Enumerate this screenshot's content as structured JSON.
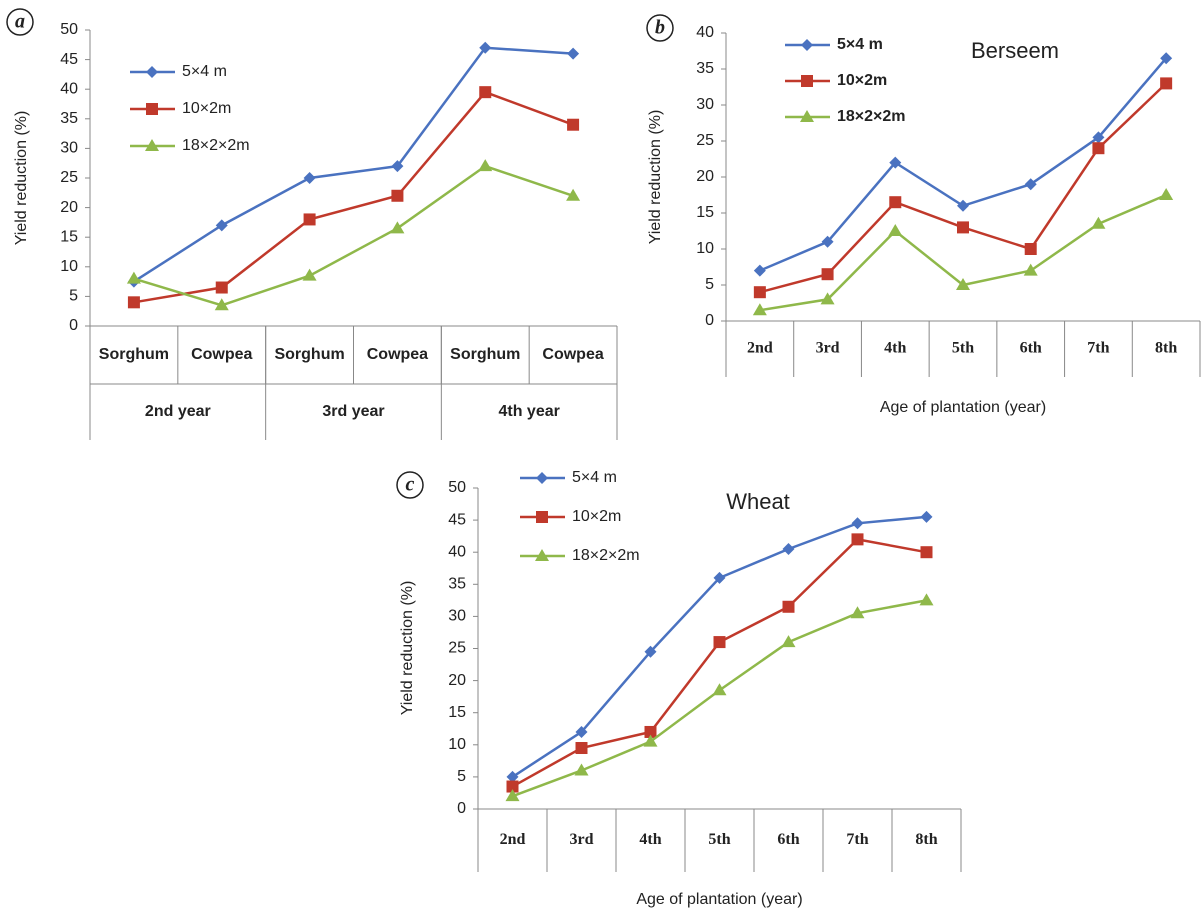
{
  "chart_data": [
    {
      "type": "line",
      "panel_label": "a",
      "y_label": "Yield reduction (%)",
      "categories": [
        "Sorghum",
        "Cowpea",
        "Sorghum",
        "Cowpea",
        "Sorghum",
        "Cowpea"
      ],
      "groups": [
        "2nd year",
        "3rd year",
        "4th year"
      ],
      "series": [
        {
          "name": "5×4 m",
          "color": "#4a72c0",
          "marker": "diamond",
          "values": [
            7.5,
            17,
            25,
            27,
            47,
            46
          ]
        },
        {
          "name": "10×2m",
          "color": "#c0392b",
          "marker": "square",
          "values": [
            4,
            6.5,
            18,
            22,
            39.5,
            34
          ]
        },
        {
          "name": "18×2×2m",
          "color": "#8fb84a",
          "marker": "triangle",
          "values": [
            8,
            3.5,
            8.5,
            16.5,
            27,
            22
          ]
        }
      ],
      "ylim": [
        0,
        50
      ],
      "yticks": [
        0,
        5,
        10,
        15,
        20,
        25,
        30,
        35,
        40,
        45,
        50
      ],
      "legend": "upper left"
    },
    {
      "type": "line",
      "panel_label": "b",
      "title": "Berseem",
      "y_label": "Yield reduction (%)",
      "x_label": "Age of plantation (year)",
      "categories": [
        "2nd",
        "3rd",
        "4th",
        "5th",
        "6th",
        "7th",
        "8th"
      ],
      "series": [
        {
          "name": "5×4 m",
          "color": "#4a72c0",
          "marker": "diamond",
          "values": [
            7,
            11,
            22,
            16,
            19,
            25.5,
            36.5
          ]
        },
        {
          "name": "10×2m",
          "color": "#c0392b",
          "marker": "square",
          "values": [
            4,
            6.5,
            16.5,
            13,
            10,
            24,
            33
          ]
        },
        {
          "name": "18×2×2m",
          "color": "#8fb84a",
          "marker": "triangle",
          "values": [
            1.5,
            3,
            12.5,
            5,
            7,
            13.5,
            17.5
          ]
        }
      ],
      "ylim": [
        0,
        40
      ],
      "yticks": [
        0,
        5,
        10,
        15,
        20,
        25,
        30,
        35,
        40
      ],
      "legend": "upper left"
    },
    {
      "type": "line",
      "panel_label": "c",
      "title": "Wheat",
      "y_label": "Yield reduction (%)",
      "x_label": "Age of plantation (year)",
      "categories": [
        "2nd",
        "3rd",
        "4th",
        "5th",
        "6th",
        "7th",
        "8th"
      ],
      "series": [
        {
          "name": "5×4 m",
          "color": "#4a72c0",
          "marker": "diamond",
          "values": [
            5,
            12,
            24.5,
            36,
            40.5,
            44.5,
            45.5
          ]
        },
        {
          "name": "10×2m",
          "color": "#c0392b",
          "marker": "square",
          "values": [
            3.5,
            9.5,
            12,
            26,
            31.5,
            42,
            40
          ]
        },
        {
          "name": "18×2×2m",
          "color": "#8fb84a",
          "marker": "triangle",
          "values": [
            2,
            6,
            10.5,
            18.5,
            26,
            30.5,
            32.5
          ]
        }
      ],
      "ylim": [
        0,
        50
      ],
      "yticks": [
        0,
        5,
        10,
        15,
        20,
        25,
        30,
        35,
        40,
        45,
        50
      ],
      "legend": "upper left"
    }
  ]
}
